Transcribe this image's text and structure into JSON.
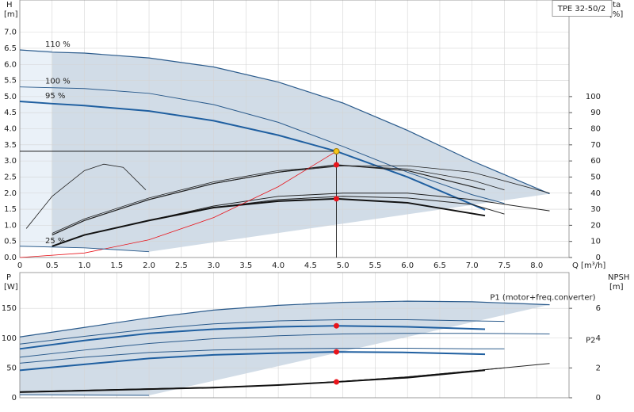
{
  "chart_data": [
    {
      "type": "line",
      "title": "TPE 32-50/2",
      "ylabel": "H",
      "ylabel_unit": "[m]",
      "y2label": "eta",
      "y2label_unit": "[%]",
      "xlabel": "Q [m³/h]",
      "xlim": [
        0,
        8.5
      ],
      "ylim": [
        0,
        8
      ],
      "y2lim": [
        0,
        160
      ],
      "grid": true,
      "series_label_position": "start",
      "xticks": [
        0,
        0.5,
        {
          "value": 1,
          "label": "1.0"
        },
        1.5,
        {
          "value": 2,
          "label": "2.0"
        },
        2.5,
        {
          "value": 3,
          "label": "3.0"
        },
        3.5,
        {
          "value": 4,
          "label": "4.0"
        },
        4.5,
        {
          "value": 5,
          "label": "5.0"
        },
        5.5,
        {
          "value": 6,
          "label": "6.0"
        },
        6.5,
        {
          "value": 7,
          "label": "7.0"
        },
        7.5,
        {
          "value": 8,
          "label": "8.0"
        }
      ],
      "yticks": [
        {
          "value": 0,
          "label": "0.0"
        },
        0.5,
        {
          "value": 1,
          "label": "1.0"
        },
        1.5,
        {
          "value": 2,
          "label": "2.0"
        },
        2.5,
        {
          "value": 3,
          "label": "3.0"
        },
        3.5,
        {
          "value": 4,
          "label": "4.0"
        },
        4.5,
        {
          "value": 5,
          "label": "5.0"
        },
        5.5,
        {
          "value": 6,
          "label": "6.0"
        },
        6.5,
        {
          "value": 7,
          "label": "7.0"
        }
      ],
      "y2ticks": [
        0,
        10,
        20,
        30,
        40,
        50,
        60,
        70,
        80,
        90,
        100
      ],
      "series": [
        {
          "name": "110 %",
          "color": "#2b5b8c",
          "line_width": 1.2,
          "x": [
            0,
            0.5,
            1,
            2,
            3,
            4,
            5,
            6,
            7,
            8.2
          ],
          "values": [
            6.45,
            6.38,
            6.35,
            6.2,
            5.92,
            5.45,
            4.8,
            3.95,
            3.0,
            1.98
          ]
        },
        {
          "name": "100 %",
          "color": "#2b5b8c",
          "line_width": 1,
          "x": [
            0,
            1,
            2,
            3,
            4,
            5,
            6,
            7,
            7.5
          ],
          "values": [
            5.3,
            5.25,
            5.1,
            4.75,
            4.2,
            3.45,
            2.65,
            1.95,
            1.68
          ]
        },
        {
          "name": "95 %",
          "color": "#1f5fa0",
          "line_width": 2,
          "x": [
            0,
            0.5,
            1,
            2,
            3,
            4,
            4.9,
            6,
            7.2
          ],
          "values": [
            4.85,
            4.78,
            4.72,
            4.55,
            4.25,
            3.8,
            3.3,
            2.5,
            1.48
          ]
        },
        {
          "color": "#222222",
          "line_width": 0.8,
          "axis": "y2",
          "x": [
            0.5,
            1,
            2,
            3,
            4,
            5,
            6,
            7,
            8.2
          ],
          "values": [
            15,
            24,
            37,
            47,
            54,
            57,
            57,
            53,
            40
          ]
        },
        {
          "color": "#222222",
          "line_width": 0.8,
          "axis": "y2",
          "x": [
            0.5,
            1,
            2,
            3,
            4,
            5,
            6,
            7,
            7.5
          ],
          "values": [
            14,
            23,
            36,
            46,
            53,
            57,
            55,
            48,
            42
          ]
        },
        {
          "color": "#222222",
          "line_width": 1.2,
          "axis": "y2",
          "x": [
            0.5,
            1,
            2,
            3,
            4,
            4.9,
            6,
            7.2
          ],
          "values": [
            14,
            23,
            36,
            46,
            53,
            57.6,
            54,
            42
          ]
        },
        {
          "color": "#222222",
          "line_width": 1,
          "axis": "y2",
          "x": [
            0.5,
            1,
            2,
            3,
            4,
            5,
            6,
            7,
            8.2
          ],
          "values": [
            7,
            14,
            23,
            32,
            38,
            40,
            40,
            36,
            29
          ]
        },
        {
          "color": "#222222",
          "line_width": 1,
          "axis": "y2",
          "x": [
            0.5,
            1,
            2,
            3,
            4,
            5,
            6,
            7,
            7.5
          ],
          "values": [
            7,
            14,
            23,
            31,
            36,
            38,
            37,
            33,
            27
          ]
        },
        {
          "color": "#111111",
          "line_width": 2,
          "axis": "y2",
          "x": [
            0.5,
            1,
            2,
            3,
            4,
            4.9,
            6,
            7.2
          ],
          "values": [
            7,
            14,
            23,
            31,
            35,
            36.5,
            34,
            26
          ]
        },
        {
          "color": "#222222",
          "line_width": 0.8,
          "axis": "y2",
          "x": [
            0.1,
            0.5,
            1,
            1.3,
            1.6,
            1.95
          ],
          "values": [
            18,
            38,
            54,
            58,
            56,
            42
          ]
        },
        {
          "color": "#e8141b",
          "line_width": 0.8,
          "x": [
            0,
            1,
            2,
            3,
            4,
            4.9
          ],
          "values": [
            0,
            0.14,
            0.55,
            1.24,
            2.2,
            3.3
          ]
        },
        {
          "name": "25 %",
          "color": "#2b5b8c",
          "line_width": 1,
          "x": [
            0,
            1,
            2
          ],
          "values": [
            0.35,
            0.3,
            0.18
          ]
        }
      ],
      "markers": [
        {
          "x": 4.9,
          "y": 3.3,
          "color": "#f5c518"
        },
        {
          "x": 4.9,
          "y": 57.6,
          "axis": "y2",
          "color": "#e8141b"
        },
        {
          "x": 4.9,
          "y": 36.5,
          "axis": "y2",
          "color": "#e8141b"
        }
      ]
    },
    {
      "type": "line",
      "ylabel": "P",
      "ylabel_unit": "[W]",
      "y2label": "NPSH",
      "y2label_unit": "[m]",
      "xlim": [
        0,
        8.5
      ],
      "ylim": [
        0,
        210
      ],
      "y2lim": [
        0,
        8.4
      ],
      "grid": true,
      "series_label_position": "end",
      "xtick_labels": false,
      "xticks": [
        0,
        0.5,
        1,
        1.5,
        2,
        2.5,
        3,
        3.5,
        4,
        4.5,
        5,
        5.5,
        6,
        6.5,
        7,
        7.5,
        8
      ],
      "yticks": [
        0,
        50,
        100,
        150
      ],
      "y2ticks": [
        0,
        2,
        4,
        6
      ],
      "series": [
        {
          "name": "P1 (motor+freq.converter)",
          "color": "#2b5b8c",
          "line_width": 1.2,
          "x": [
            0,
            1,
            2,
            3,
            4,
            5,
            6,
            7,
            8.2
          ],
          "values": [
            102,
            118,
            134,
            147,
            155,
            160,
            162,
            161,
            156
          ]
        },
        {
          "color": "#2b5b8c",
          "line_width": 1,
          "x": [
            0,
            1,
            2,
            3,
            4,
            5,
            6,
            7,
            7.5
          ],
          "values": [
            90,
            103,
            115,
            124,
            129,
            131,
            131,
            129,
            128
          ]
        },
        {
          "color": "#1f5fa0",
          "line_width": 2,
          "x": [
            0,
            1,
            2,
            3,
            4,
            4.9,
            6,
            7.2
          ],
          "values": [
            82,
            96,
            108,
            115,
            119,
            120.7,
            119,
            115
          ]
        },
        {
          "name": "P2",
          "color": "#2b5b8c",
          "line_width": 1,
          "x": [
            0,
            1,
            2,
            3,
            4,
            5,
            6,
            7,
            8.2
          ],
          "values": [
            68,
            80,
            91,
            99,
            104,
            107,
            108,
            108,
            107
          ]
        },
        {
          "color": "#2b5b8c",
          "line_width": 1,
          "x": [
            0,
            1,
            2,
            3,
            4,
            5,
            6,
            7,
            7.5
          ],
          "values": [
            58,
            68,
            76,
            80,
            82,
            83,
            83,
            82,
            82
          ]
        },
        {
          "color": "#1f5fa0",
          "line_width": 2,
          "x": [
            0,
            1,
            2,
            3,
            4,
            4.9,
            6,
            7.2
          ],
          "values": [
            46,
            56,
            66,
            72,
            75,
            77,
            76,
            73
          ]
        },
        {
          "color": "#222222",
          "line_width": 1,
          "axis": "y2",
          "x": [
            0,
            1,
            2,
            3,
            4,
            5,
            6,
            7,
            8.2
          ],
          "values": [
            0.4,
            0.5,
            0.6,
            0.7,
            0.85,
            1.1,
            1.4,
            1.8,
            2.3
          ]
        },
        {
          "color": "#222222",
          "line_width": 1,
          "axis": "y2",
          "x": [
            0,
            1,
            2,
            3,
            4,
            5,
            6,
            7,
            7.5
          ],
          "values": [
            0.4,
            0.5,
            0.6,
            0.7,
            0.85,
            1.1,
            1.4,
            1.8,
            2.0
          ]
        },
        {
          "color": "#111111",
          "line_width": 2,
          "axis": "y2",
          "x": [
            0,
            1,
            2,
            3,
            4,
            4.9,
            6,
            7.2
          ],
          "values": [
            0.38,
            0.48,
            0.58,
            0.68,
            0.85,
            1.06,
            1.35,
            1.85
          ]
        },
        {
          "color": "#2b5b8c",
          "line_width": 1,
          "x": [
            0,
            2
          ],
          "values": [
            5,
            4
          ]
        }
      ],
      "markers": [
        {
          "x": 4.9,
          "y": 120.7,
          "color": "#e8141b"
        },
        {
          "x": 4.9,
          "y": 77,
          "color": "#e8141b"
        },
        {
          "x": 4.9,
          "y": 1.06,
          "axis": "y2",
          "color": "#e8141b"
        }
      ]
    }
  ]
}
